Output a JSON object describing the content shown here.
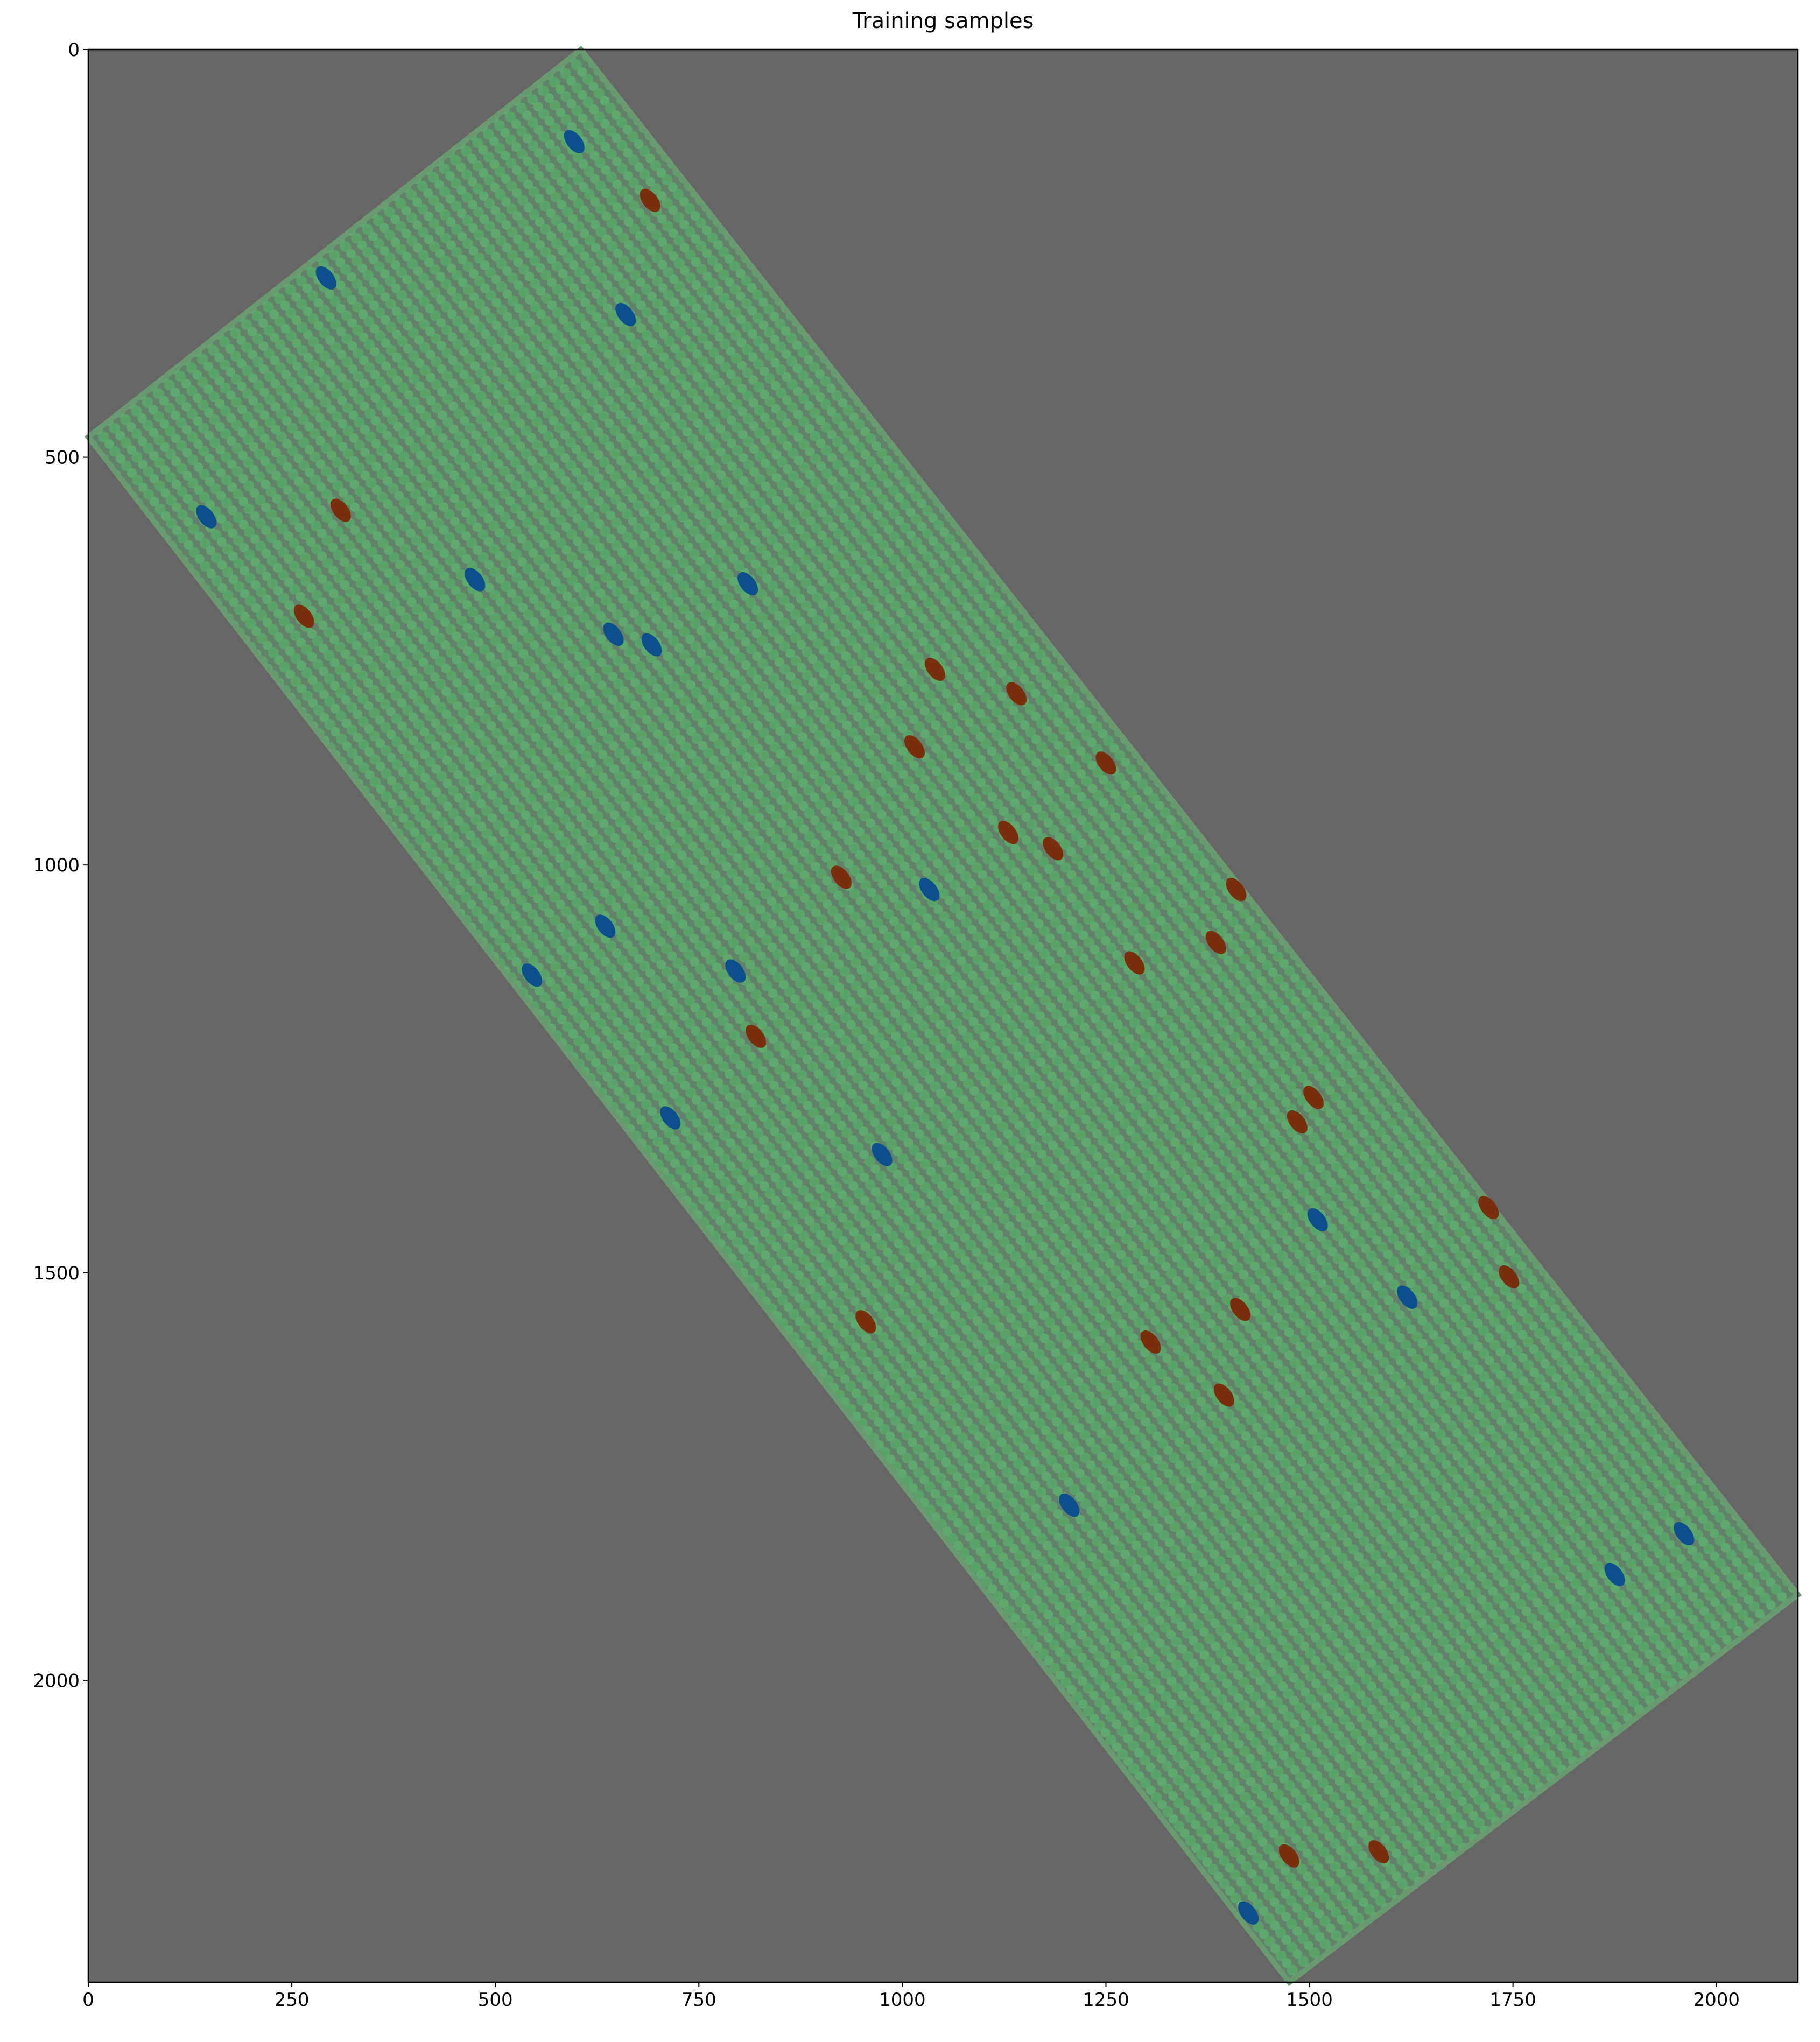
{
  "chart_data": {
    "type": "image",
    "title": "Training samples",
    "xlim": [
      0,
      2100
    ],
    "ylim": [
      2370,
      0
    ],
    "xticks": [
      0,
      250,
      500,
      750,
      1000,
      1250,
      1500,
      1750,
      2000
    ],
    "yticks": [
      0,
      500,
      1000,
      1500,
      2000
    ],
    "series": [
      {
        "color": "#0b4f8c",
        "x": [
          597,
          292,
          660,
          145,
          475,
          810,
          645,
          692,
          1033,
          635,
          545,
          795,
          715,
          975,
          1510,
          1620,
          1205,
          1960,
          1875,
          1425
        ],
        "y": [
          113,
          280,
          325,
          573,
          650,
          655,
          717,
          730,
          1030,
          1075,
          1135,
          1130,
          1310,
          1355,
          1435,
          1530,
          1785,
          1820,
          1870,
          2285
        ]
      },
      {
        "color": "#7a2f0c",
        "x": [
          690,
          310,
          265,
          1040,
          1140,
          1015,
          1250,
          1130,
          1185,
          925,
          1410,
          1285,
          1385,
          820,
          1505,
          1485,
          1720,
          1745,
          955,
          1415,
          1305,
          1395,
          1475,
          1585
        ],
        "y": [
          185,
          565,
          695,
          760,
          790,
          855,
          875,
          960,
          980,
          1015,
          1030,
          1120,
          1095,
          1210,
          1285,
          1315,
          1420,
          1505,
          1560,
          1545,
          1585,
          1650,
          2215,
          2210
        ]
      }
    ]
  }
}
